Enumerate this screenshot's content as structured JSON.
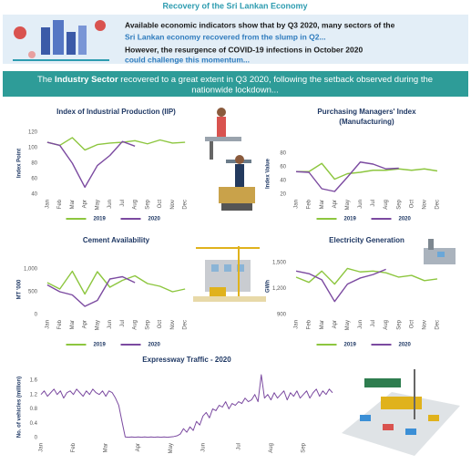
{
  "header": {
    "title": "Recovery of the Sri Lankan Economy",
    "lines": [
      "Available economic indicators show that by Q3 2020, many sectors of the",
      "Sri Lankan economy recovered from the slump in Q2...",
      "However, the resurgence of COVID-19 infections in October 2020",
      "could challenge this momentum..."
    ]
  },
  "banner": {
    "prefix": "The",
    "bold": "Industry Sector",
    "rest": "recovered to a great extent in Q3 2020, following the setback observed during the",
    "rest2": "nationwide lockdown..."
  },
  "chart_data": [
    {
      "type": "line",
      "title": "Index of Industrial Production (IIP)",
      "ylabel": "Index Point",
      "categories": [
        "Jan",
        "Feb",
        "Mar",
        "Apr",
        "May",
        "Jun",
        "Jul",
        "Aug",
        "Sep",
        "Oct",
        "Nov",
        "Dec"
      ],
      "series": [
        {
          "name": "2019",
          "color": "#8dc63f",
          "values": [
            107,
            103,
            113,
            97,
            104,
            106,
            107,
            109,
            105,
            110,
            106,
            107
          ]
        },
        {
          "name": "2020",
          "color": "#7b4aa0",
          "values": [
            107,
            103,
            80,
            49,
            77,
            90,
            108,
            102,
            null,
            null,
            null,
            null
          ]
        }
      ],
      "ylim": [
        40,
        120
      ],
      "yticks": [
        40,
        60,
        80,
        100,
        120
      ],
      "grid": false
    },
    {
      "type": "line",
      "title": "Purchasing Managers' Index",
      "subtitle": "(Manufacturing)",
      "ylabel": "Index Value",
      "categories": [
        "Jan",
        "Feb",
        "Mar",
        "Apr",
        "May",
        "Jun",
        "Jul",
        "Aug",
        "Sep",
        "Oct",
        "Nov",
        "Dec"
      ],
      "series": [
        {
          "name": "2019",
          "color": "#8dc63f",
          "values": [
            53,
            53,
            65,
            42,
            50,
            52,
            55,
            55,
            57,
            55,
            57,
            54
          ]
        },
        {
          "name": "2020",
          "color": "#7b4aa0",
          "values": [
            53,
            52,
            28,
            24,
            45,
            67,
            64,
            57,
            58,
            null,
            null,
            null
          ]
        }
      ],
      "ylim": [
        20,
        80
      ],
      "yticks": [
        20,
        40,
        60,
        80
      ],
      "grid": false
    },
    {
      "type": "line",
      "title": "Cement Availability",
      "ylabel": "MT '000",
      "categories": [
        "Jan",
        "Feb",
        "Mar",
        "Apr",
        "May",
        "Jun",
        "Jul",
        "Aug",
        "Sep",
        "Oct",
        "Nov",
        "Dec"
      ],
      "series": [
        {
          "name": "2019",
          "color": "#8dc63f",
          "values": [
            700,
            560,
            950,
            450,
            940,
            600,
            750,
            850,
            680,
            620,
            500,
            560
          ]
        },
        {
          "name": "2020",
          "color": "#7b4aa0",
          "values": [
            650,
            500,
            430,
            180,
            310,
            780,
            830,
            700,
            null,
            null,
            null,
            null
          ]
        }
      ],
      "ylim": [
        0,
        1100
      ],
      "yticks": [
        0,
        500,
        {
          "value": 1000,
          "label": "1,000"
        }
      ],
      "grid": false
    },
    {
      "type": "line",
      "title": "Electricity Generation",
      "ylabel": "GWh",
      "categories": [
        "Jan",
        "Feb",
        "Mar",
        "Apr",
        "May",
        "Jun",
        "Jul",
        "Aug",
        "Sep",
        "Oct",
        "Nov",
        "Dec"
      ],
      "series": [
        {
          "name": "2019",
          "color": "#8dc63f",
          "values": [
            1330,
            1270,
            1400,
            1250,
            1430,
            1390,
            1400,
            1380,
            1330,
            1350,
            1290,
            1310
          ]
        },
        {
          "name": "2020",
          "color": "#7b4aa0",
          "values": [
            1400,
            1370,
            1300,
            1050,
            1250,
            1320,
            1360,
            1420,
            null,
            null,
            null,
            null
          ]
        }
      ],
      "ylim": [
        900,
        1550
      ],
      "yticks": [
        900,
        {
          "value": 1200,
          "label": "1,200"
        },
        {
          "value": 1500,
          "label": "1,500"
        }
      ],
      "grid": false
    },
    {
      "type": "daily",
      "title": "Expressway Traffic - 2020",
      "ylabel": "No. of vehicles (million)",
      "color": "#7b4aa0",
      "values": [
        1.2,
        1.3,
        1.15,
        1.25,
        1.35,
        1.2,
        1.3,
        1.1,
        1.25,
        1.3,
        1.2,
        1.35,
        1.25,
        1.15,
        1.3,
        1.2,
        1.35,
        1.25,
        1.2,
        1.3,
        1.15,
        1.3,
        1.25,
        1.1,
        0.9,
        0.45,
        0.02,
        0.01,
        0.02,
        0.01,
        0.02,
        0.01,
        0.02,
        0.01,
        0.02,
        0.01,
        0.02,
        0.01,
        0.02,
        0.01,
        0.02,
        0.03,
        0.05,
        0.1,
        0.25,
        0.15,
        0.3,
        0.2,
        0.45,
        0.35,
        0.6,
        0.7,
        0.55,
        0.8,
        0.75,
        0.9,
        0.85,
        1.0,
        0.8,
        0.95,
        0.9,
        1.0,
        0.95,
        1.1,
        1.0,
        1.05,
        1.2,
        1.0,
        1.75,
        1.1,
        1.2,
        1.05,
        1.25,
        1.1,
        1.2,
        1.3,
        1.05,
        1.25,
        1.15,
        1.3,
        1.1,
        1.2,
        1.3,
        1.1,
        1.25,
        1.35,
        1.15,
        1.3,
        1.2,
        1.35,
        1.25
      ],
      "xlim": [
        0,
        90
      ],
      "xticks": [
        {
          "value": 0,
          "label": "Jan"
        },
        {
          "value": 10,
          "label": "Feb"
        },
        {
          "value": 20,
          "label": "Mar"
        },
        {
          "value": 30,
          "label": "Apr"
        },
        {
          "value": 40,
          "label": "May"
        },
        {
          "value": 50,
          "label": "Jun"
        },
        {
          "value": 61,
          "label": "Jul"
        },
        {
          "value": 71,
          "label": "Aug"
        },
        {
          "value": 81,
          "label": "Sep"
        }
      ],
      "ylim": [
        0,
        1.7
      ],
      "yticks": [
        0,
        0.4,
        0.8,
        1.2,
        1.6
      ],
      "grid": false
    }
  ]
}
